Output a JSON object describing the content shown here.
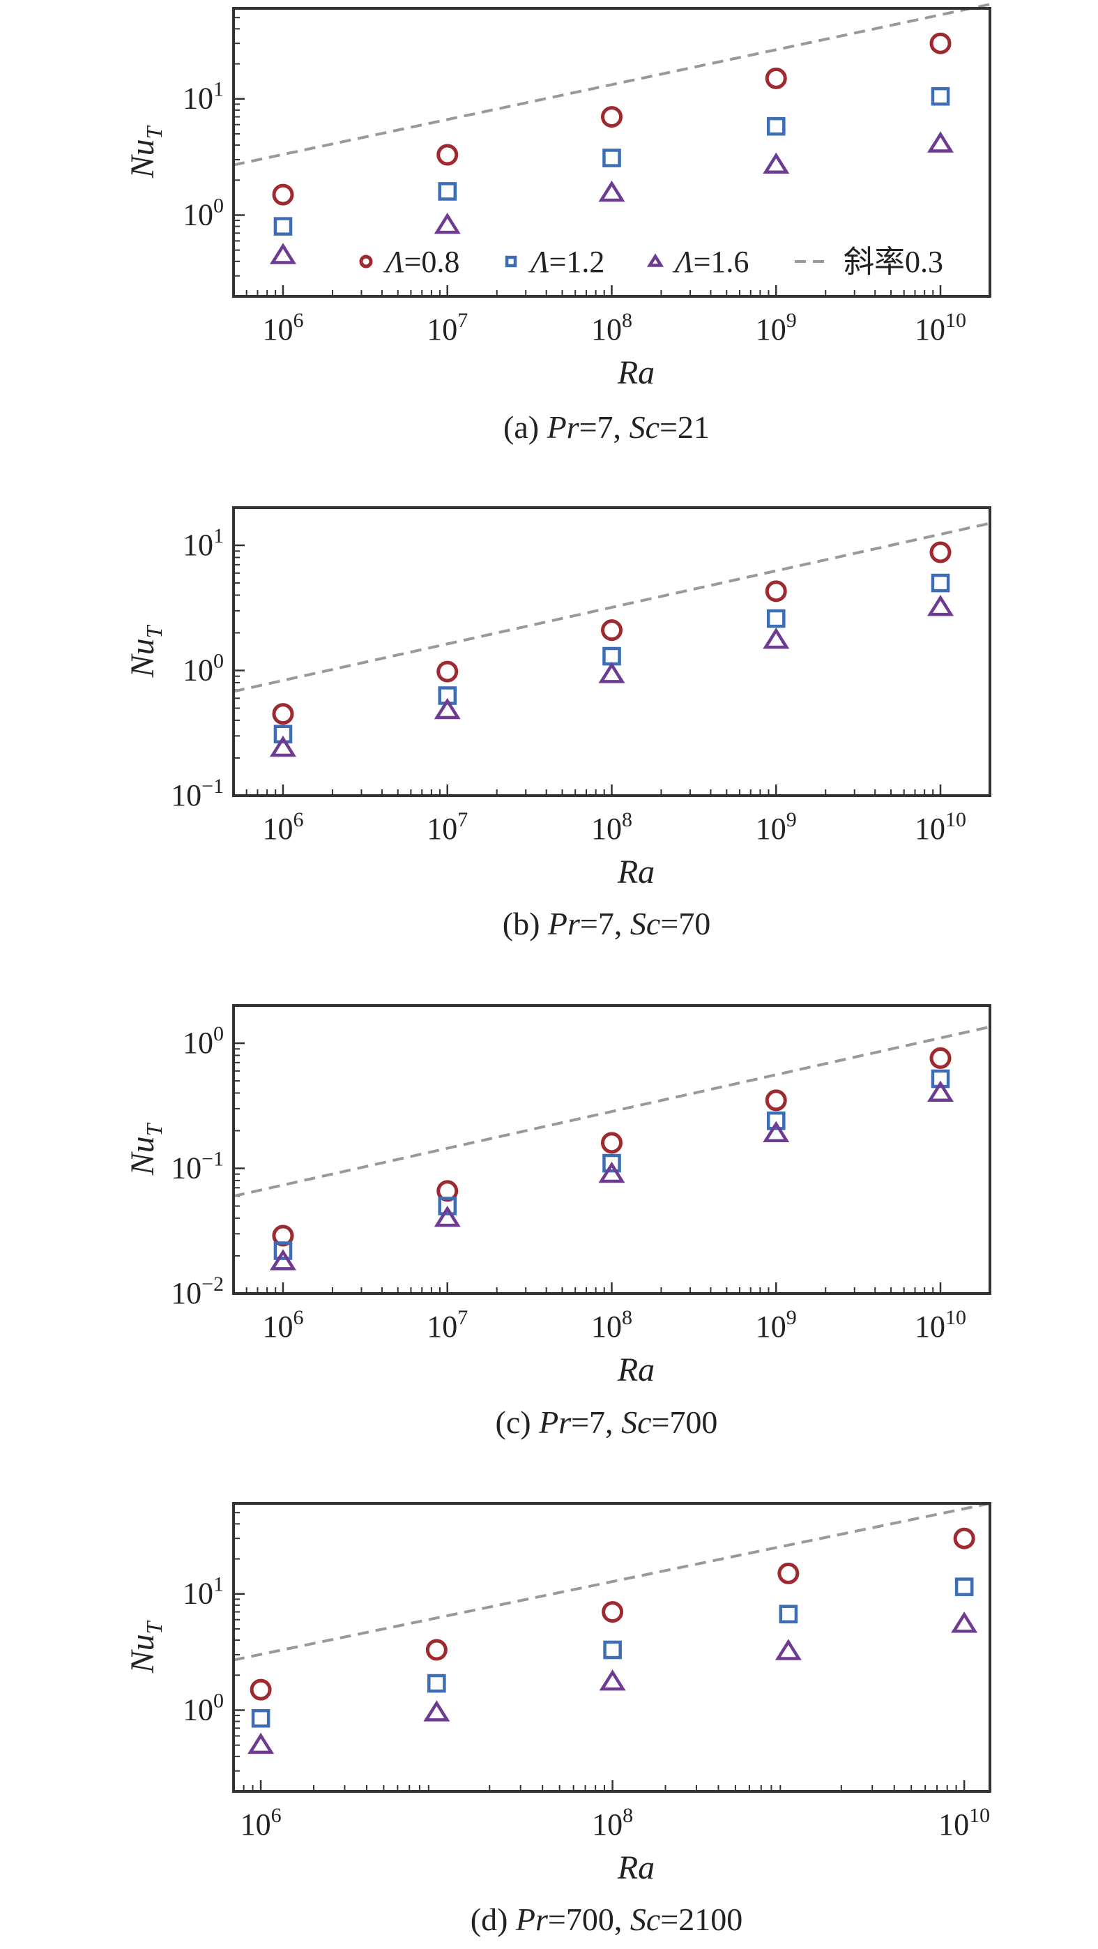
{
  "colors": {
    "circle": "#9e2a2f",
    "square": "#3d6db5",
    "triangle": "#6e3b92",
    "dashed": "#999999",
    "axis": "#333333"
  },
  "chart_data": [
    {
      "type": "scatter",
      "caption": {
        "prefix": "(a) ",
        "v1": "Pr",
        "eq1": "=7, ",
        "v2": "Sc",
        "eq2": "=21"
      },
      "x_scale": "log",
      "y_scale": "log",
      "xlabel": "Ra",
      "ylabel": "Nu",
      "ylabel_sub": "T",
      "xlim": [
        500000,
        20000000000
      ],
      "ylim": [
        0.2,
        60
      ],
      "xticks": [
        {
          "value": 1000000,
          "base": "10",
          "exp": "6"
        },
        {
          "value": 10000000,
          "base": "10",
          "exp": "7"
        },
        {
          "value": 100000000,
          "base": "10",
          "exp": "8"
        },
        {
          "value": 1000000000,
          "base": "10",
          "exp": "9"
        },
        {
          "value": 10000000000,
          "base": "10",
          "exp": "10"
        }
      ],
      "yticks": [
        {
          "value": 1,
          "base": "10",
          "exp": "0"
        },
        {
          "value": 10,
          "base": "10",
          "exp": "1"
        }
      ],
      "legend": {
        "placement": "bottom-right",
        "entries": [
          {
            "marker": "circle",
            "prefix": "Λ",
            "value": "=0.8"
          },
          {
            "marker": "square",
            "prefix": "Λ",
            "value": "=1.2"
          },
          {
            "marker": "triangle",
            "prefix": "Λ",
            "value": "=1.6"
          },
          {
            "marker": "dashed",
            "prefix": "",
            "value": "斜率0.3"
          }
        ]
      },
      "reference_line": {
        "slope": 0.3,
        "x": [
          500000,
          20000000000
        ],
        "y": [
          2.7,
          65
        ]
      },
      "x": [
        1000000,
        10000000,
        100000000,
        1000000000,
        10000000000
      ],
      "series": [
        {
          "name": "Λ=0.8",
          "marker": "circle",
          "values": [
            1.5,
            3.3,
            7.0,
            15.0,
            30.0
          ]
        },
        {
          "name": "Λ=1.2",
          "marker": "square",
          "values": [
            0.8,
            1.6,
            3.1,
            5.8,
            10.5
          ]
        },
        {
          "name": "Λ=1.6",
          "marker": "triangle",
          "values": [
            0.45,
            0.82,
            1.55,
            2.7,
            4.1
          ]
        }
      ]
    },
    {
      "type": "scatter",
      "caption": {
        "prefix": "(b) ",
        "v1": "Pr",
        "eq1": "=7, ",
        "v2": "Sc",
        "eq2": "=70"
      },
      "x_scale": "log",
      "y_scale": "log",
      "xlabel": "Ra",
      "ylabel": "Nu",
      "ylabel_sub": "T",
      "xlim": [
        500000,
        20000000000
      ],
      "ylim": [
        0.1,
        20
      ],
      "xticks": [
        {
          "value": 1000000,
          "base": "10",
          "exp": "6"
        },
        {
          "value": 10000000,
          "base": "10",
          "exp": "7"
        },
        {
          "value": 100000000,
          "base": "10",
          "exp": "8"
        },
        {
          "value": 1000000000,
          "base": "10",
          "exp": "9"
        },
        {
          "value": 10000000000,
          "base": "10",
          "exp": "10"
        }
      ],
      "yticks": [
        {
          "value": 0.1,
          "base": "10",
          "exp": "−1"
        },
        {
          "value": 1,
          "base": "10",
          "exp": "0"
        },
        {
          "value": 10,
          "base": "10",
          "exp": "1"
        }
      ],
      "reference_line": {
        "slope": 0.3,
        "x": [
          500000,
          20000000000
        ],
        "y": [
          0.68,
          15
        ]
      },
      "x": [
        1000000,
        10000000,
        100000000,
        1000000000,
        10000000000
      ],
      "series": [
        {
          "name": "Λ=0.8",
          "marker": "circle",
          "values": [
            0.45,
            0.98,
            2.1,
            4.3,
            8.8
          ]
        },
        {
          "name": "Λ=1.2",
          "marker": "square",
          "values": [
            0.31,
            0.63,
            1.3,
            2.6,
            5.0
          ]
        },
        {
          "name": "Λ=1.6",
          "marker": "triangle",
          "values": [
            0.24,
            0.48,
            0.93,
            1.75,
            3.2
          ]
        }
      ]
    },
    {
      "type": "scatter",
      "caption": {
        "prefix": "(c) ",
        "v1": "Pr",
        "eq1": "=7, ",
        "v2": "Sc",
        "eq2": "=700"
      },
      "x_scale": "log",
      "y_scale": "log",
      "xlabel": "Ra",
      "ylabel": "Nu",
      "ylabel_sub": "T",
      "xlim": [
        500000,
        20000000000
      ],
      "ylim": [
        0.01,
        2
      ],
      "xticks": [
        {
          "value": 1000000,
          "base": "10",
          "exp": "6"
        },
        {
          "value": 10000000,
          "base": "10",
          "exp": "7"
        },
        {
          "value": 100000000,
          "base": "10",
          "exp": "8"
        },
        {
          "value": 1000000000,
          "base": "10",
          "exp": "9"
        },
        {
          "value": 10000000000,
          "base": "10",
          "exp": "10"
        }
      ],
      "yticks": [
        {
          "value": 0.01,
          "base": "10",
          "exp": "−2"
        },
        {
          "value": 0.1,
          "base": "10",
          "exp": "−1"
        },
        {
          "value": 1,
          "base": "10",
          "exp": "0"
        }
      ],
      "reference_line": {
        "slope": 0.3,
        "x": [
          500000,
          20000000000
        ],
        "y": [
          0.06,
          1.35
        ]
      },
      "x": [
        1000000,
        10000000,
        100000000,
        1000000000,
        10000000000
      ],
      "series": [
        {
          "name": "Λ=0.8",
          "marker": "circle",
          "values": [
            0.029,
            0.066,
            0.16,
            0.35,
            0.76
          ]
        },
        {
          "name": "Λ=1.2",
          "marker": "square",
          "values": [
            0.022,
            0.05,
            0.11,
            0.24,
            0.52
          ]
        },
        {
          "name": "Λ=1.6",
          "marker": "triangle",
          "values": [
            0.018,
            0.04,
            0.09,
            0.19,
            0.4
          ]
        }
      ]
    },
    {
      "type": "scatter",
      "caption": {
        "prefix": "(d) ",
        "v1": "Pr",
        "eq1": "=700, ",
        "v2": "Sc",
        "eq2": "=2100"
      },
      "x_scale": "log",
      "y_scale": "log",
      "xlabel": "Ra",
      "ylabel": "Nu",
      "ylabel_sub": "T",
      "xlim": [
        700000,
        14000000000
      ],
      "ylim": [
        0.2,
        60
      ],
      "xticks": [
        {
          "value": 1000000,
          "base": "10",
          "exp": "6"
        },
        {
          "value": 100000000,
          "base": "10",
          "exp": "8"
        },
        {
          "value": 10000000000,
          "base": "10",
          "exp": "10"
        }
      ],
      "yticks": [
        {
          "value": 1,
          "base": "10",
          "exp": "0"
        },
        {
          "value": 10,
          "base": "10",
          "exp": "1"
        }
      ],
      "reference_line": {
        "slope": 0.3,
        "x": [
          700000,
          14000000000
        ],
        "y": [
          2.7,
          60
        ]
      },
      "x": [
        1000000,
        10000000,
        100000000,
        1000000000,
        10000000000
      ],
      "series": [
        {
          "name": "Λ=0.8",
          "marker": "circle",
          "values": [
            1.5,
            3.3,
            7.0,
            15.0,
            30.0
          ]
        },
        {
          "name": "Λ=1.2",
          "marker": "square",
          "values": [
            0.85,
            1.7,
            3.3,
            6.7,
            11.5
          ]
        },
        {
          "name": "Λ=1.6",
          "marker": "triangle",
          "values": [
            0.5,
            0.95,
            1.75,
            3.2,
            5.5
          ]
        }
      ]
    }
  ]
}
